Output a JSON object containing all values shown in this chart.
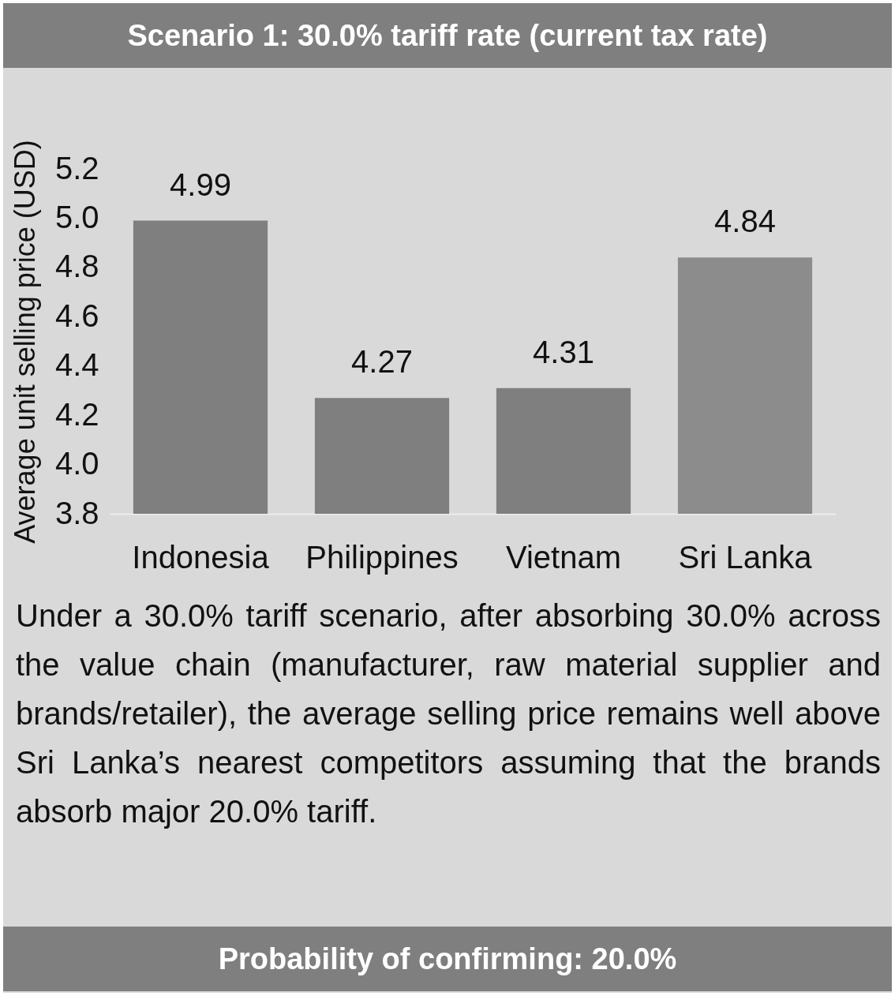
{
  "chart_data": {
    "type": "bar",
    "title": "Scenario 1: 30.0% tariff rate (current tax rate)",
    "ylabel": "Average unit selling price (USD)",
    "categories": [
      "Indonesia",
      "Philippines",
      "Vietnam",
      "Sri Lanka"
    ],
    "values": [
      4.99,
      4.27,
      4.31,
      4.84
    ],
    "colors": [
      "#7f7f7f",
      "#7f7f7f",
      "#7f7f7f",
      "#8c8c8c"
    ],
    "ylim": [
      3.8,
      5.2
    ],
    "yticks": [
      3.8,
      {
        "value": 4,
        "label": "4.0"
      },
      4.2,
      4.4,
      4.6,
      4.8,
      {
        "value": 5,
        "label": "5.0"
      },
      5.2
    ],
    "data_labels": true,
    "annotations": [
      "Under a 30.0% tariff scenario, after absorbing 30.0% across the value chain (manufacturer, raw material supplier and brands/retailer), the average selling price remains well above Sri Lanka’s nearest competitors assuming that the brands absorb major 20.0% tariff.",
      "Probability of confirming:  20.0%"
    ]
  }
}
